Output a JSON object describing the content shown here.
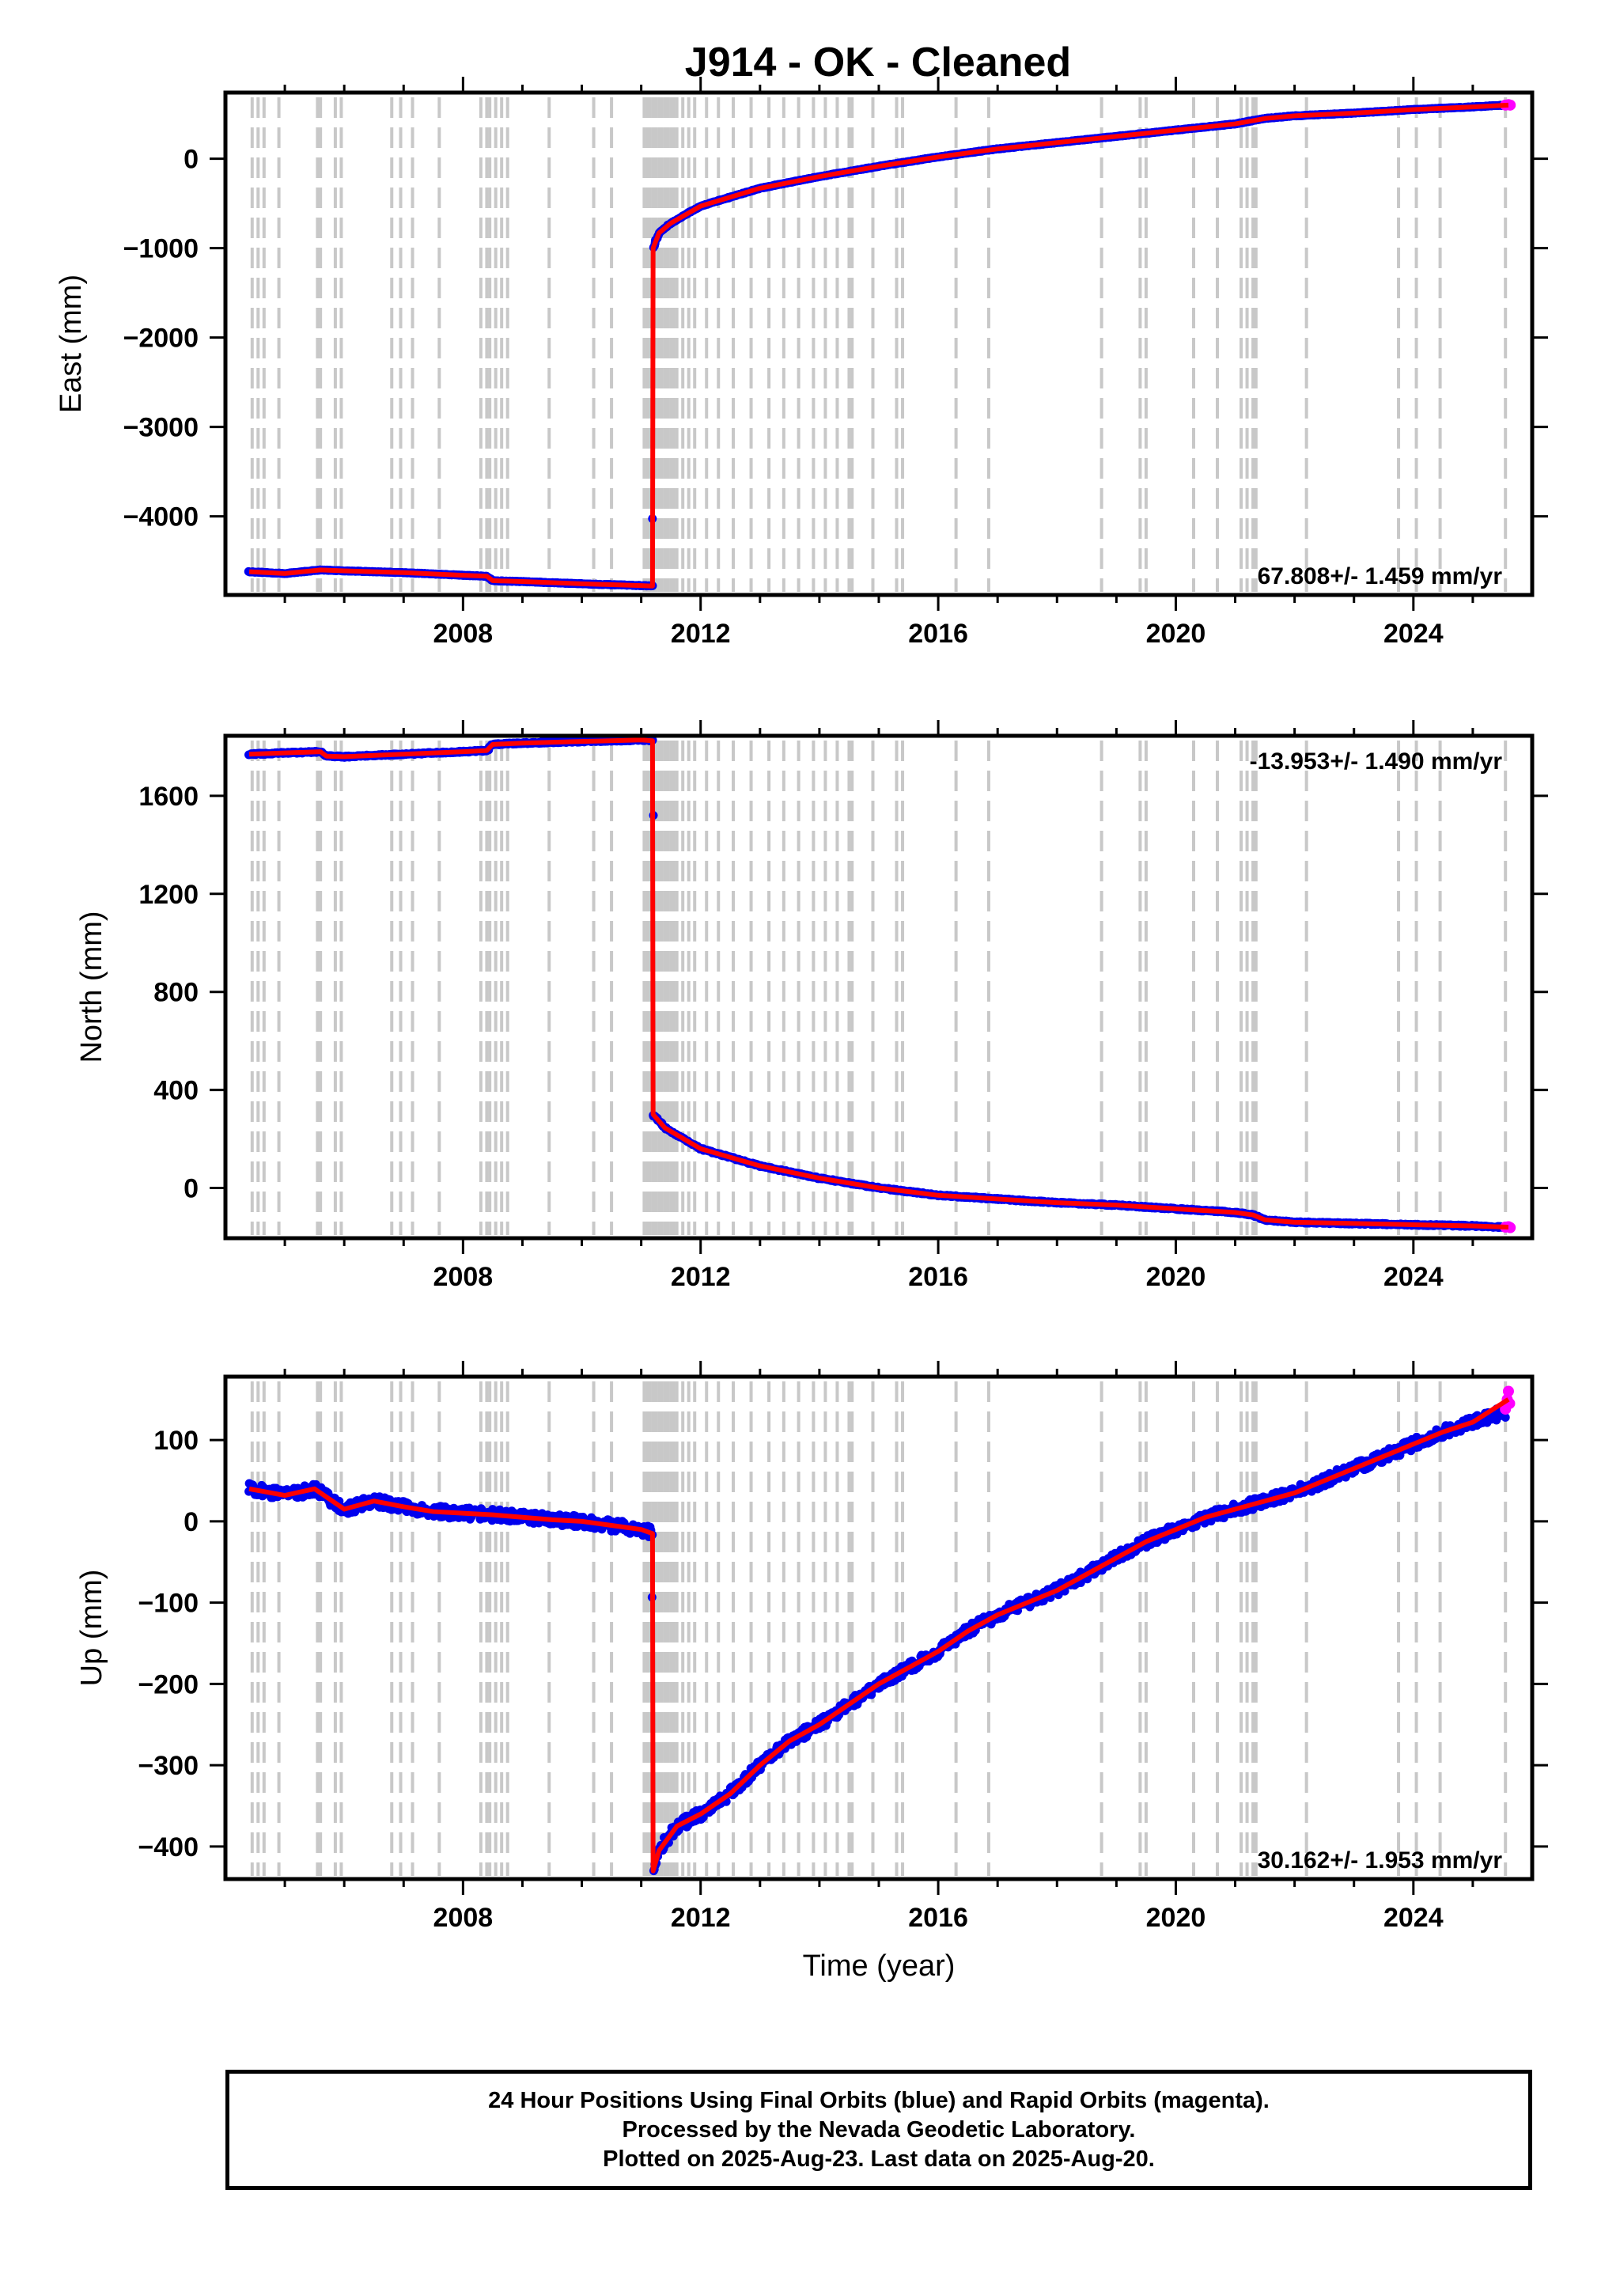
{
  "title": "J914  - OK - Cleaned",
  "chart_data": [
    {
      "type": "scatter",
      "panel": "east",
      "ylabel": "East (mm)",
      "xlabel": "",
      "xlim": [
        2004.0,
        2026.0
      ],
      "ylim": [
        -4880,
        740
      ],
      "yticks": [
        0,
        -1000,
        -2000,
        -3000,
        -4000
      ],
      "xticks": [
        2008,
        2012,
        2016,
        2020,
        2024
      ],
      "rate_label": "67.808+/- 1.459 mm/yr",
      "rate_position": "bottom-right",
      "series": [
        {
          "name": "Final Orbits (blue)",
          "color": "#0000ee",
          "x": [
            2004.4,
            2005.0,
            2005.6,
            2006.0,
            2007.0,
            2008.0,
            2008.4,
            2008.5,
            2009.0,
            2010.0,
            2011.0,
            2011.19,
            2011.2,
            2011.3,
            2011.5,
            2012.0,
            2013.0,
            2014.0,
            2015.0,
            2016.0,
            2017.0,
            2018.0,
            2019.0,
            2020.0,
            2021.0,
            2021.5,
            2022.0,
            2023.0,
            2024.0,
            2025.0,
            2025.55
          ],
          "y": [
            -4620,
            -4640,
            -4600,
            -4610,
            -4630,
            -4660,
            -4670,
            -4720,
            -4730,
            -4755,
            -4775,
            -4780,
            -1000,
            -830,
            -720,
            -530,
            -330,
            -200,
            -85,
            20,
            110,
            180,
            250,
            320,
            390,
            450,
            480,
            510,
            550,
            580,
            600
          ]
        },
        {
          "name": "Rapid Orbits (magenta)",
          "color": "#ff00ff",
          "x": [
            2025.55,
            2025.6,
            2025.63
          ],
          "y": [
            600,
            605,
            600
          ]
        }
      ],
      "fit": {
        "color": "#ff0000",
        "x": [
          2004.4,
          2005.0,
          2005.6,
          2006.0,
          2007.0,
          2008.0,
          2008.4,
          2008.5,
          2009.0,
          2010.0,
          2011.0,
          2011.19,
          2011.2,
          2011.3,
          2011.5,
          2012.0,
          2013.0,
          2014.0,
          2015.0,
          2016.0,
          2017.0,
          2018.0,
          2019.0,
          2020.0,
          2021.0,
          2021.5,
          2022.0,
          2023.0,
          2024.0,
          2025.0,
          2025.6
        ],
        "y": [
          -4620,
          -4640,
          -4600,
          -4610,
          -4630,
          -4660,
          -4670,
          -4720,
          -4730,
          -4755,
          -4775,
          -4780,
          -1000,
          -830,
          -720,
          -530,
          -330,
          -200,
          -85,
          20,
          110,
          180,
          250,
          320,
          390,
          450,
          480,
          510,
          550,
          580,
          600
        ]
      }
    },
    {
      "type": "scatter",
      "panel": "north",
      "ylabel": "North (mm)",
      "xlabel": "",
      "xlim": [
        2004.0,
        2026.0
      ],
      "ylim": [
        -205,
        1845
      ],
      "yticks": [
        0,
        400,
        800,
        1200,
        1600
      ],
      "xticks": [
        2008,
        2012,
        2016,
        2020,
        2024
      ],
      "rate_label": "-13.953+/- 1.490 mm/yr",
      "rate_position": "top-right",
      "series": [
        {
          "name": "Final Orbits (blue)",
          "color": "#0000ee",
          "x": [
            2004.4,
            2005.0,
            2005.6,
            2005.7,
            2006.0,
            2007.0,
            2008.0,
            2008.4,
            2008.5,
            2009.0,
            2010.0,
            2011.0,
            2011.19,
            2011.2,
            2011.4,
            2012.0,
            2013.0,
            2014.0,
            2015.0,
            2016.0,
            2017.0,
            2018.0,
            2019.0,
            2020.0,
            2021.0,
            2021.3,
            2021.5,
            2022.0,
            2023.0,
            2024.0,
            2025.0,
            2025.55
          ],
          "y": [
            1770,
            1775,
            1780,
            1762,
            1760,
            1770,
            1780,
            1785,
            1810,
            1815,
            1822,
            1828,
            1825,
            300,
            245,
            160,
            90,
            40,
            0,
            -30,
            -45,
            -60,
            -70,
            -85,
            -100,
            -110,
            -130,
            -140,
            -145,
            -150,
            -155,
            -160
          ]
        },
        {
          "name": "Rapid Orbits (magenta)",
          "color": "#ff00ff",
          "x": [
            2025.55,
            2025.6,
            2025.63
          ],
          "y": [
            -160,
            -158,
            -162
          ]
        }
      ],
      "fit": {
        "color": "#ff0000",
        "x": [
          2004.4,
          2005.0,
          2005.6,
          2005.7,
          2006.0,
          2007.0,
          2008.0,
          2008.4,
          2008.5,
          2009.0,
          2010.0,
          2011.0,
          2011.19,
          2011.2,
          2011.4,
          2012.0,
          2013.0,
          2014.0,
          2015.0,
          2016.0,
          2017.0,
          2018.0,
          2019.0,
          2020.0,
          2021.0,
          2021.3,
          2021.5,
          2022.0,
          2023.0,
          2024.0,
          2025.0,
          2025.6
        ],
        "y": [
          1770,
          1775,
          1780,
          1762,
          1760,
          1770,
          1780,
          1785,
          1810,
          1815,
          1822,
          1828,
          1825,
          300,
          245,
          160,
          90,
          40,
          0,
          -30,
          -45,
          -60,
          -70,
          -85,
          -100,
          -110,
          -130,
          -140,
          -145,
          -150,
          -155,
          -160
        ]
      }
    },
    {
      "type": "scatter",
      "panel": "up",
      "ylabel": "Up (mm)",
      "xlabel": "Time (year)",
      "xlim": [
        2004.0,
        2026.0
      ],
      "ylim": [
        -440,
        178
      ],
      "yticks": [
        100,
        0,
        -100,
        -200,
        -300,
        -400
      ],
      "xticks": [
        2008,
        2012,
        2016,
        2020,
        2024
      ],
      "rate_label": "30.162+/- 1.953 mm/yr",
      "rate_position": "bottom-right",
      "series": [
        {
          "name": "Final Orbits (blue)",
          "color": "#0000ee",
          "x": [
            2004.4,
            2005.0,
            2005.5,
            2006.0,
            2006.5,
            2007.0,
            2007.5,
            2008.0,
            2008.5,
            2009.0,
            2009.5,
            2010.0,
            2010.5,
            2011.0,
            2011.19,
            2011.2,
            2011.3,
            2011.6,
            2012.0,
            2012.5,
            2013.0,
            2013.5,
            2014.0,
            2014.5,
            2015.0,
            2015.5,
            2016.0,
            2016.5,
            2017.0,
            2017.5,
            2018.0,
            2018.5,
            2019.0,
            2019.5,
            2020.0,
            2020.5,
            2021.0,
            2021.5,
            2022.0,
            2022.5,
            2023.0,
            2023.5,
            2024.0,
            2024.5,
            2025.0,
            2025.55
          ],
          "y": [
            40,
            32,
            40,
            15,
            25,
            18,
            12,
            10,
            8,
            5,
            2,
            0,
            -5,
            -10,
            -15,
            -430,
            -405,
            -375,
            -360,
            -335,
            -300,
            -270,
            -250,
            -225,
            -200,
            -180,
            -160,
            -135,
            -115,
            -100,
            -85,
            -65,
            -45,
            -25,
            -10,
            5,
            15,
            25,
            35,
            50,
            65,
            80,
            95,
            110,
            122,
            135
          ]
        },
        {
          "name": "Rapid Orbits (magenta)",
          "color": "#ff00ff",
          "x": [
            2025.55,
            2025.58,
            2025.6,
            2025.62
          ],
          "y": [
            138,
            150,
            160,
            145
          ]
        }
      ],
      "fit": {
        "color": "#ff0000",
        "x": [
          2004.4,
          2005.0,
          2005.5,
          2006.0,
          2006.5,
          2007.0,
          2007.5,
          2008.0,
          2008.5,
          2009.0,
          2009.5,
          2010.0,
          2010.5,
          2011.0,
          2011.19,
          2011.2,
          2011.3,
          2011.6,
          2012.0,
          2012.5,
          2013.0,
          2013.5,
          2014.0,
          2014.5,
          2015.0,
          2015.5,
          2016.0,
          2016.5,
          2017.0,
          2017.5,
          2018.0,
          2018.5,
          2019.0,
          2019.5,
          2020.0,
          2020.5,
          2021.0,
          2021.5,
          2022.0,
          2022.5,
          2023.0,
          2023.5,
          2024.0,
          2024.5,
          2025.0,
          2025.6
        ],
        "y": [
          40,
          32,
          40,
          15,
          25,
          18,
          12,
          10,
          8,
          5,
          2,
          0,
          -5,
          -10,
          -15,
          -430,
          -405,
          -375,
          -360,
          -335,
          -300,
          -270,
          -250,
          -225,
          -200,
          -180,
          -160,
          -135,
          -115,
          -100,
          -85,
          -65,
          -45,
          -25,
          -10,
          5,
          15,
          25,
          35,
          50,
          65,
          80,
          95,
          110,
          122,
          150
        ]
      }
    }
  ],
  "equipment_change_epochs": [
    2004.45,
    2004.55,
    2004.65,
    2004.9,
    2005.55,
    2005.6,
    2005.85,
    2005.95,
    2006.8,
    2006.95,
    2007.15,
    2007.6,
    2008.3,
    2008.4,
    2008.45,
    2008.55,
    2008.65,
    2008.75,
    2009.45,
    2010.2,
    2010.5,
    2011.05,
    2011.1,
    2011.15,
    2011.2,
    2011.25,
    2011.3,
    2011.35,
    2011.4,
    2011.45,
    2011.5,
    2011.55,
    2011.6,
    2011.7,
    2011.8,
    2011.9,
    2012.1,
    2012.3,
    2012.55,
    2012.85,
    2013.15,
    2013.4,
    2013.65,
    2013.9,
    2014.1,
    2014.3,
    2014.5,
    2014.55,
    2014.9,
    2015.3,
    2015.4,
    2016.3,
    2016.85,
    2018.75,
    2019.4,
    2019.5,
    2020.3,
    2020.7,
    2021.1,
    2021.2,
    2021.3,
    2021.35,
    2022.2,
    2023.75,
    2024.05,
    2024.45,
    2025.55
  ],
  "caption": {
    "line1": "24 Hour Positions Using Final Orbits (blue) and Rapid Orbits (magenta).",
    "line2": "Processed by the Nevada Geodetic Laboratory.",
    "line3": "Plotted on 2025-Aug-23. Last data on 2025-Aug-20."
  }
}
